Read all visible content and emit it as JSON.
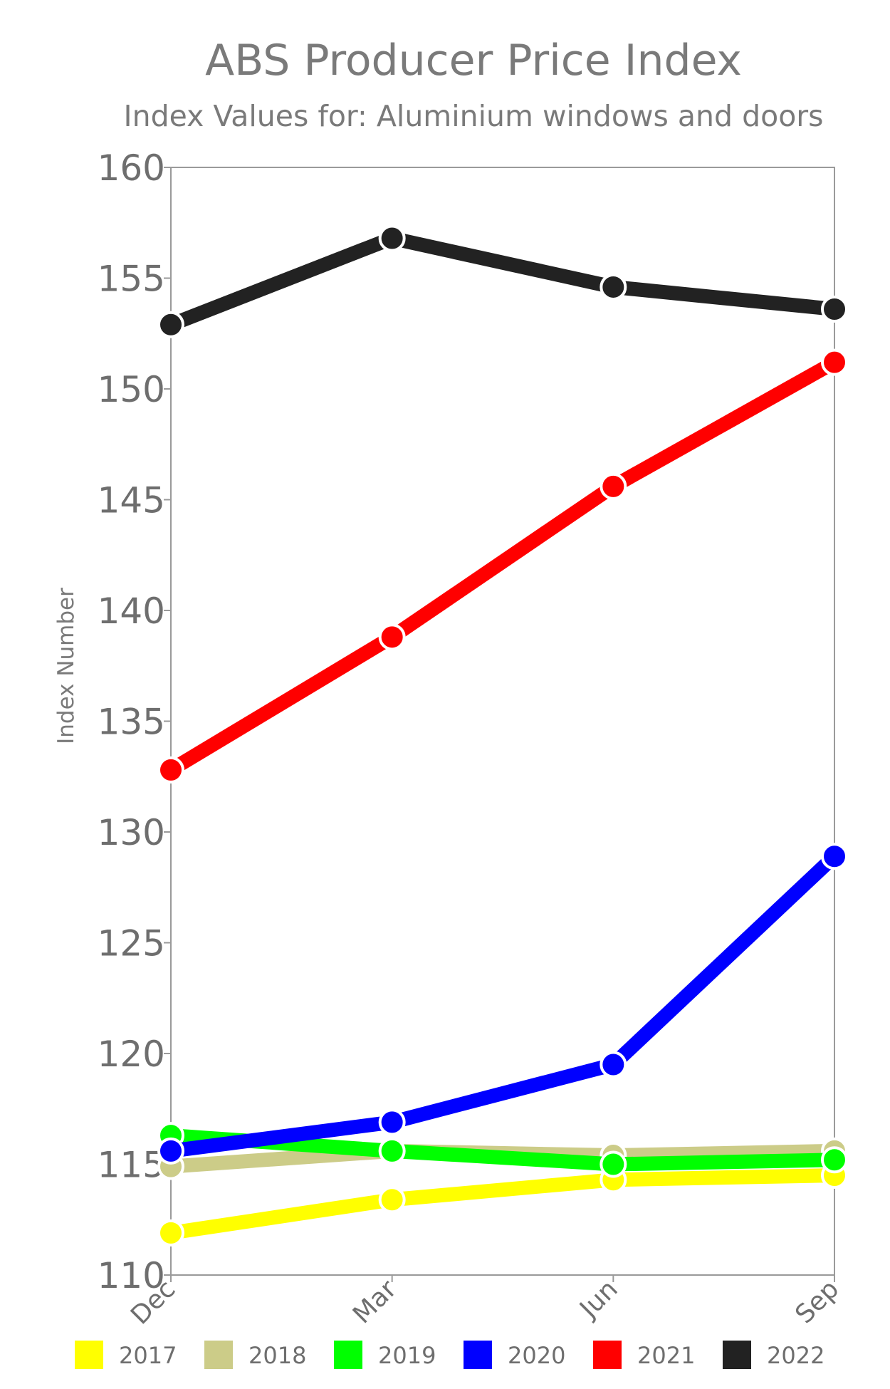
{
  "chart_data": {
    "type": "line",
    "title": "ABS Producer Price Index",
    "subtitle": "Index Values for: Aluminium windows and doors",
    "ylabel": "Index Number",
    "xlabel": "",
    "categories": [
      "Dec",
      "Mar",
      "Jun",
      "Sep"
    ],
    "ylim": [
      110,
      160
    ],
    "yticks": [
      110,
      115,
      120,
      125,
      130,
      135,
      140,
      145,
      150,
      155,
      160
    ],
    "grid": false,
    "legend_position": "bottom",
    "series": [
      {
        "name": "2017",
        "color": "#ffff00",
        "values": [
          111.9,
          113.4,
          114.3,
          114.5
        ]
      },
      {
        "name": "2018",
        "color": "#cccc88",
        "values": [
          114.9,
          115.6,
          115.4,
          115.6
        ]
      },
      {
        "name": "2019",
        "color": "#00ff00",
        "values": [
          116.3,
          115.6,
          115.0,
          115.2
        ]
      },
      {
        "name": "2020",
        "color": "#0000ff",
        "values": [
          115.6,
          116.9,
          119.5,
          128.9
        ]
      },
      {
        "name": "2021",
        "color": "#ff0000",
        "values": [
          132.8,
          138.8,
          145.6,
          151.2
        ]
      },
      {
        "name": "2022",
        "color": "#222222",
        "values": [
          152.9,
          156.8,
          154.6,
          153.6
        ]
      }
    ]
  }
}
